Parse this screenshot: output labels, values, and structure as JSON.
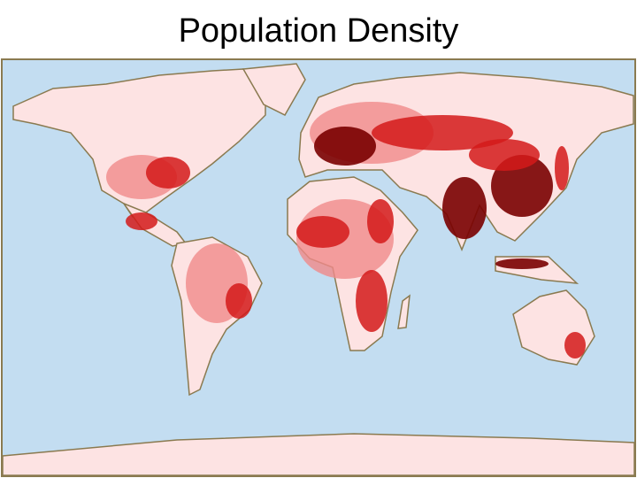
{
  "title": "Population Density"
}
